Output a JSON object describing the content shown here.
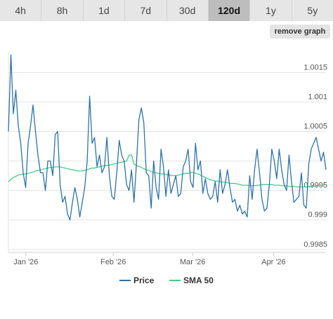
{
  "tabs": [
    {
      "label": "4h",
      "active": false
    },
    {
      "label": "8h",
      "active": false
    },
    {
      "label": "1d",
      "active": false
    },
    {
      "label": "7d",
      "active": false
    },
    {
      "label": "30d",
      "active": false
    },
    {
      "label": "120d",
      "active": true
    },
    {
      "label": "1y",
      "active": false
    },
    {
      "label": "5y",
      "active": false
    }
  ],
  "remove_graph_label": "remove graph",
  "chart_data": {
    "type": "line",
    "ylim": [
      0.99845,
      1.00185
    ],
    "yticks": [
      {
        "value": 0.9985,
        "label": "0.9985"
      },
      {
        "value": 0.999,
        "label": "0.999"
      },
      {
        "value": 0.9995,
        "label": "0.9995"
      },
      {
        "value": 1.0,
        "label": ""
      },
      {
        "value": 1.0005,
        "label": "1.0005"
      },
      {
        "value": 1.001,
        "label": "1.001"
      },
      {
        "value": 1.0015,
        "label": "1.0015"
      }
    ],
    "xticks": [
      {
        "pos": 0.055,
        "label": "Jan '26"
      },
      {
        "pos": 0.33,
        "label": "Feb '26"
      },
      {
        "pos": 0.58,
        "label": "Mar '26"
      },
      {
        "pos": 0.835,
        "label": "Apr '26"
      }
    ],
    "grid": true,
    "legend_position": "bottom-center",
    "series": [
      {
        "name": "Price",
        "color": "#2f72a8",
        "values": [
          1.0005,
          1.0018,
          1.0008,
          1.0012,
          1.0006,
          1.0003,
          0.9998,
          0.99955,
          1.0003,
          1.0006,
          1.00095,
          1.0005,
          1.0001,
          0.9998,
          0.9998,
          0.9995,
          1.0,
          1.0,
          0.99975,
          1.00045,
          1.0005,
          0.9996,
          0.9993,
          0.9994,
          0.9991,
          0.999,
          0.9993,
          0.99955,
          0.99935,
          0.99905,
          0.9993,
          0.99955,
          1.0,
          1.0011,
          1.0003,
          1.0004,
          0.9999,
          1.0001,
          0.9998,
          0.9999,
          1.0004,
          0.99975,
          0.9994,
          0.99935,
          0.9998,
          1.00035,
          1.0001,
          1.0,
          0.9996,
          0.9995,
          0.99985,
          0.9993,
          0.99995,
          1.0007,
          1.0009,
          1.00065,
          0.9998,
          0.99975,
          0.9992,
          1.0,
          0.99955,
          0.99935,
          1.0002,
          0.9999,
          0.9994,
          0.99985,
          0.99945,
          0.9996,
          0.99975,
          0.9994,
          0.99945,
          0.9999,
          1.0,
          1.0002,
          0.99965,
          0.99955,
          1.0003,
          0.99985,
          1.0,
          0.99945,
          0.9997,
          0.99945,
          0.99935,
          0.9994,
          0.99965,
          0.9993,
          0.99985,
          0.99945,
          0.9996,
          0.99985,
          0.99955,
          0.9993,
          0.99935,
          0.99915,
          0.99925,
          0.9991,
          0.99915,
          0.99905,
          0.99975,
          0.99935,
          0.99985,
          1.0002,
          0.9998,
          0.99935,
          0.99915,
          0.9992,
          0.9996,
          1.0002,
          1.0,
          0.9997,
          1.0002,
          0.99985,
          0.9996,
          0.9995,
          1.0001,
          0.99965,
          0.9993,
          0.99935,
          0.9994,
          0.9998,
          0.99925,
          0.9992,
          0.99995,
          1.0002,
          1.0003,
          1.0004,
          1.0002,
          1.0,
          1.00015,
          0.99985
        ]
      },
      {
        "name": "SMA 50",
        "color": "#44cc88",
        "values": [
          0.99965,
          0.99969,
          0.99972,
          0.99974,
          0.99976,
          0.99977,
          0.99978,
          0.99978,
          0.99979,
          0.9998,
          0.99981,
          0.99983,
          0.99984,
          0.99985,
          0.99986,
          0.99987,
          0.99988,
          0.99989,
          0.99989,
          0.9999,
          0.9999,
          0.9999,
          0.99989,
          0.99988,
          0.99987,
          0.99986,
          0.99985,
          0.99984,
          0.99983,
          0.99983,
          0.99983,
          0.99984,
          0.99985,
          0.99987,
          0.99988,
          0.99988,
          0.99989,
          0.9999,
          0.99991,
          0.99992,
          0.99992,
          0.99993,
          0.99994,
          0.99995,
          0.99996,
          0.99997,
          0.99998,
          0.99999,
          1.0,
          1.0001,
          1.0001,
          0.99995,
          0.99992,
          0.99991,
          0.99989,
          0.99987,
          0.99985,
          0.99984,
          0.99982,
          0.99981,
          0.9998,
          0.99979,
          0.99978,
          0.99978,
          0.99977,
          0.99976,
          0.99976,
          0.99975,
          0.99975,
          0.99976,
          0.99977,
          0.99978,
          0.99979,
          0.99979,
          0.9998,
          0.9998,
          0.99979,
          0.99978,
          0.99976,
          0.99974,
          0.99972,
          0.9997,
          0.99968,
          0.99967,
          0.99966,
          0.99966,
          0.99965,
          0.99964,
          0.99964,
          0.99963,
          0.99962,
          0.99962,
          0.99962,
          0.99961,
          0.9996,
          0.99959,
          0.99959,
          0.99959,
          0.99958,
          0.99958,
          0.99958,
          0.99959,
          0.99959,
          0.9996,
          0.9996,
          0.9996,
          0.9996,
          0.9996,
          0.99959,
          0.99959,
          0.99959,
          0.99958,
          0.99958,
          0.99958,
          0.99957,
          0.99957,
          0.99957,
          0.99956,
          0.99956,
          0.99956,
          0.99956,
          0.99956,
          0.99957,
          0.99957,
          0.99957,
          0.99958,
          0.99958,
          0.99959,
          0.99959,
          0.9996
        ]
      }
    ]
  }
}
